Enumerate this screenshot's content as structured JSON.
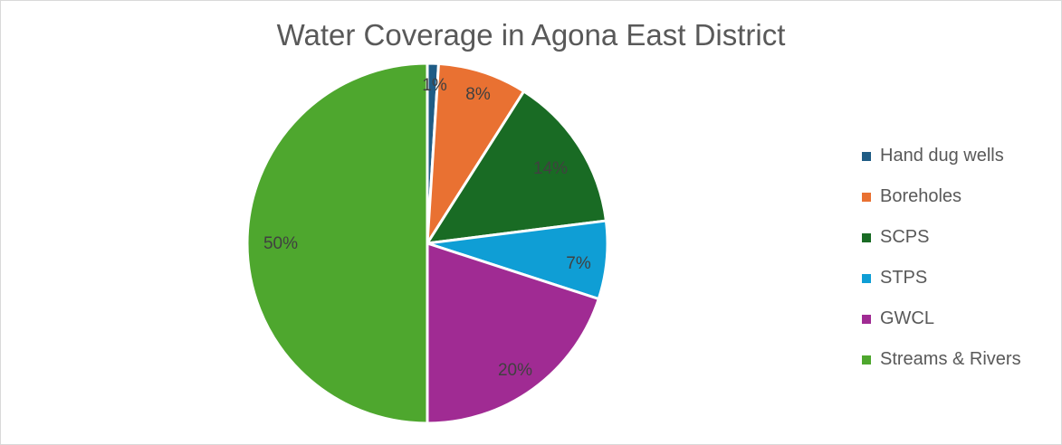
{
  "chart_data": {
    "type": "pie",
    "title": "Water Coverage in Agona East District",
    "legend_position": "right",
    "slices": [
      {
        "name": "Hand dug wells",
        "value": 1,
        "label": "1%",
        "color": "#1f5c85"
      },
      {
        "name": "Boreholes",
        "value": 8,
        "label": "8%",
        "color": "#e97132"
      },
      {
        "name": "SCPS",
        "value": 14,
        "label": "14%",
        "color": "#196b24"
      },
      {
        "name": "STPS",
        "value": 7,
        "label": "7%",
        "color": "#0f9ed5"
      },
      {
        "name": "GWCL",
        "value": 20,
        "label": "20%",
        "color": "#a02b93"
      },
      {
        "name": "Streams & Rivers",
        "value": 50,
        "label": "50%",
        "color": "#4ea72e"
      }
    ]
  }
}
